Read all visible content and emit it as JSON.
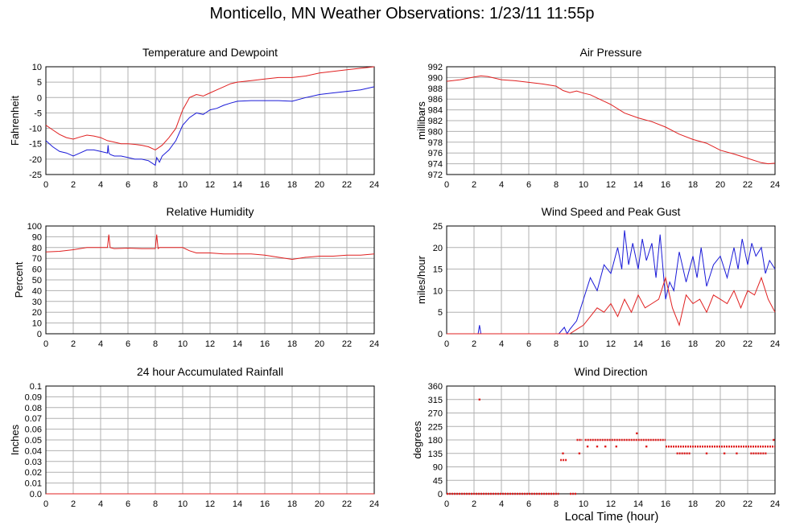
{
  "page": {
    "title": "Monticello, MN Weather Observations: 1/23/11 11:55p",
    "x_axis_label": "Local Time (hour)"
  },
  "colors": {
    "red": "#e02020",
    "blue": "#1a1ad8",
    "grid": "#b0b0b0",
    "frame": "#000000"
  },
  "chart_data": [
    {
      "id": "temp",
      "type": "line",
      "title": "Temperature and Dewpoint",
      "ylabel": "Fahrenheit",
      "xlim": [
        0,
        24
      ],
      "ylim": [
        -25,
        10
      ],
      "xticks": [
        0,
        2,
        4,
        6,
        8,
        10,
        12,
        14,
        16,
        18,
        20,
        22,
        24
      ],
      "yticks": [
        -25,
        -20,
        -15,
        -10,
        -5,
        0,
        5,
        10
      ],
      "series": [
        {
          "color": "#e02020",
          "x": [
            0,
            0.5,
            1,
            1.5,
            2,
            2.5,
            3,
            3.5,
            4,
            4.5,
            5,
            5.5,
            6,
            6.5,
            7,
            7.5,
            8,
            8.5,
            9,
            9.5,
            10,
            10.5,
            11,
            11.5,
            12,
            12.5,
            13,
            13.5,
            14,
            15,
            16,
            17,
            18,
            19,
            20,
            21,
            22,
            23,
            24
          ],
          "y": [
            -9,
            -10.5,
            -12,
            -13,
            -13.5,
            -12.8,
            -12.2,
            -12.5,
            -13,
            -14,
            -14.5,
            -15,
            -15,
            -15.2,
            -15.5,
            -16,
            -17,
            -15.5,
            -13,
            -10,
            -4,
            0,
            1,
            0.5,
            1.5,
            2.5,
            3.5,
            4.5,
            5,
            5.5,
            6,
            6.5,
            6.5,
            7,
            8,
            8.5,
            9,
            9.5,
            10
          ]
        },
        {
          "color": "#1a1ad8",
          "x": [
            0,
            0.5,
            1,
            1.5,
            2,
            2.5,
            3,
            3.5,
            4,
            4.5,
            4.55,
            4.6,
            4.7,
            5,
            5.5,
            6,
            6.5,
            7,
            7.5,
            8,
            8.1,
            8.3,
            8.5,
            9,
            9.5,
            10,
            10.5,
            11,
            11.5,
            12,
            12.5,
            13,
            13.5,
            14,
            15,
            16,
            17,
            18,
            19,
            20,
            21,
            22,
            23,
            24
          ],
          "y": [
            -14,
            -16,
            -17.5,
            -18,
            -19,
            -18,
            -17,
            -17,
            -17.5,
            -18,
            -15.5,
            -18,
            -18.5,
            -19,
            -19,
            -19.5,
            -20,
            -20,
            -20.5,
            -22,
            -19.5,
            -21,
            -19,
            -17,
            -14,
            -9,
            -6.5,
            -5,
            -5.5,
            -4,
            -3.5,
            -2.5,
            -1.8,
            -1.2,
            -1,
            -1,
            -1,
            -1.2,
            0,
            1,
            1.5,
            2,
            2.5,
            3.5
          ]
        }
      ]
    },
    {
      "id": "pressure",
      "type": "line",
      "title": "Air Pressure",
      "ylabel": "millibars",
      "xlim": [
        0,
        24
      ],
      "ylim": [
        972,
        992
      ],
      "xticks": [
        0,
        2,
        4,
        6,
        8,
        10,
        12,
        14,
        16,
        18,
        20,
        22,
        24
      ],
      "yticks": [
        972,
        974,
        976,
        978,
        980,
        982,
        984,
        986,
        988,
        990,
        992
      ],
      "series": [
        {
          "color": "#e02020",
          "x": [
            0,
            1,
            2,
            2.5,
            3,
            4,
            5,
            6,
            7,
            8,
            8.5,
            9,
            9.5,
            10,
            10.5,
            11,
            12,
            13,
            14,
            15,
            16,
            17,
            18,
            19,
            20,
            21,
            22,
            23,
            23.5,
            24
          ],
          "y": [
            989.3,
            989.6,
            990.1,
            990.3,
            990.2,
            989.6,
            989.4,
            989.1,
            988.8,
            988.4,
            987.6,
            987.2,
            987.5,
            987.1,
            986.8,
            986.2,
            985,
            983.4,
            982.5,
            981.8,
            980.8,
            979.5,
            978.5,
            977.8,
            976.5,
            975.8,
            975,
            974.2,
            974,
            974.1
          ]
        }
      ]
    },
    {
      "id": "humidity",
      "type": "line",
      "title": "Relative Humidity",
      "ylabel": "Percent",
      "xlim": [
        0,
        24
      ],
      "ylim": [
        0,
        100
      ],
      "xticks": [
        0,
        2,
        4,
        6,
        8,
        10,
        12,
        14,
        16,
        18,
        20,
        22,
        24
      ],
      "yticks": [
        0,
        10,
        20,
        30,
        40,
        50,
        60,
        70,
        80,
        90,
        100
      ],
      "series": [
        {
          "color": "#e02020",
          "x": [
            0,
            1,
            2,
            3,
            4,
            4.5,
            4.6,
            4.7,
            5,
            6,
            7,
            8,
            8.1,
            8.2,
            8.3,
            9,
            10,
            10.5,
            11,
            12,
            13,
            14,
            15,
            16,
            17,
            18,
            19,
            20,
            21,
            22,
            23,
            24
          ],
          "y": [
            76,
            76.5,
            78,
            80,
            80,
            80,
            92,
            80,
            79,
            79.5,
            79,
            79,
            92,
            79,
            80,
            80,
            80,
            77,
            75,
            75,
            74,
            74,
            74,
            73,
            71,
            69,
            71,
            72,
            72,
            73,
            73,
            74
          ]
        }
      ]
    },
    {
      "id": "wind",
      "type": "line",
      "title": "Wind Speed and Peak Gust",
      "ylabel": "miles/hour",
      "xlim": [
        0,
        24
      ],
      "ylim": [
        0,
        25
      ],
      "xticks": [
        0,
        2,
        4,
        6,
        8,
        10,
        12,
        14,
        16,
        18,
        20,
        22,
        24
      ],
      "yticks": [
        0,
        5,
        10,
        15,
        20,
        25
      ],
      "series": [
        {
          "color": "#1a1ad8",
          "x": [
            0,
            2.3,
            2.4,
            2.5,
            8.2,
            8.6,
            8.8,
            9,
            9.5,
            10,
            10.5,
            11,
            11.5,
            12,
            12.5,
            12.8,
            13,
            13.3,
            13.6,
            14,
            14.3,
            14.6,
            15,
            15.3,
            15.6,
            16,
            16.3,
            16.6,
            17,
            17.5,
            18,
            18.3,
            18.6,
            19,
            19.5,
            20,
            20.5,
            21,
            21.3,
            21.6,
            22,
            22.3,
            22.6,
            23,
            23.3,
            23.6,
            24
          ],
          "y": [
            0,
            0,
            2,
            0,
            0,
            1.5,
            0,
            1,
            3,
            8,
            13,
            10,
            16,
            14,
            20,
            15,
            24,
            16,
            21,
            15,
            22,
            17,
            21,
            13,
            23,
            8,
            12,
            10,
            19,
            12,
            18,
            13,
            20,
            11,
            16,
            18,
            13,
            20,
            15,
            22,
            16,
            21,
            18,
            20,
            14,
            17,
            15
          ]
        },
        {
          "color": "#e02020",
          "x": [
            0,
            8.5,
            9,
            9.5,
            10,
            10.5,
            11,
            11.5,
            12,
            12.5,
            13,
            13.5,
            14,
            14.5,
            15,
            15.5,
            16,
            16.5,
            17,
            17.5,
            18,
            18.5,
            19,
            19.5,
            20,
            20.5,
            21,
            21.5,
            22,
            22.5,
            23,
            23.5,
            24
          ],
          "y": [
            0,
            0,
            0,
            1,
            2,
            4,
            6,
            5,
            7,
            4,
            8,
            5,
            9,
            6,
            7,
            8,
            13,
            6,
            2,
            9,
            7,
            8,
            5,
            9,
            8,
            7,
            10,
            6,
            10,
            9,
            13,
            8,
            5
          ]
        }
      ]
    },
    {
      "id": "rain",
      "type": "line",
      "title": "24 hour Accumulated Rainfall",
      "ylabel": "Inches",
      "xlim": [
        0,
        24
      ],
      "ylim": [
        0,
        0.1
      ],
      "xticks": [
        0,
        2,
        4,
        6,
        8,
        10,
        12,
        14,
        16,
        18,
        20,
        22,
        24
      ],
      "yticks": [
        0,
        0.01,
        0.02,
        0.03,
        0.04,
        0.05,
        0.06,
        0.07,
        0.08,
        0.09,
        0.1
      ],
      "ytick_labels": [
        "0.0",
        "0.01",
        "0.02",
        "0.03",
        "0.04",
        "0.05",
        "0.06",
        "0.07",
        "0.08",
        "0.09",
        "0.1"
      ],
      "series": [
        {
          "color": "#e02020",
          "x": [
            0,
            24
          ],
          "y": [
            0,
            0
          ]
        }
      ]
    },
    {
      "id": "winddir",
      "type": "scatter",
      "title": "Wind Direction",
      "ylabel": "degrees",
      "xlim": [
        0,
        24
      ],
      "ylim": [
        0,
        360
      ],
      "xticks": [
        0,
        2,
        4,
        6,
        8,
        10,
        12,
        14,
        16,
        18,
        20,
        22,
        24
      ],
      "yticks": [
        0,
        45,
        90,
        135,
        180,
        225,
        270,
        315,
        360
      ],
      "series": [
        {
          "color": "#e02020",
          "segments": [
            {
              "x0": 0,
              "x1": 8.2,
              "y": 0
            },
            {
              "x0": 8.3,
              "x1": 8.8,
              "y": 113
            },
            {
              "x0": 9.0,
              "x1": 9.5,
              "y": 0
            },
            {
              "x0": 9.5,
              "x1": 9.9,
              "y": 180
            },
            {
              "x0": 10.1,
              "x1": 16.0,
              "y": 180
            },
            {
              "x0": 16.0,
              "x1": 24.0,
              "y": 158
            },
            {
              "x0": 16.8,
              "x1": 17.8,
              "y": 135
            },
            {
              "x0": 22.2,
              "x1": 23.4,
              "y": 135
            }
          ],
          "points_x": [
            2.4,
            8.5,
            9.7,
            10.3,
            11.0,
            11.6,
            12.4,
            13.9,
            14.6,
            19.0,
            20.3,
            21.2,
            23.9
          ],
          "points_y": [
            315,
            135,
            135,
            158,
            158,
            158,
            158,
            202,
            158,
            135,
            135,
            135,
            180
          ]
        }
      ]
    }
  ]
}
